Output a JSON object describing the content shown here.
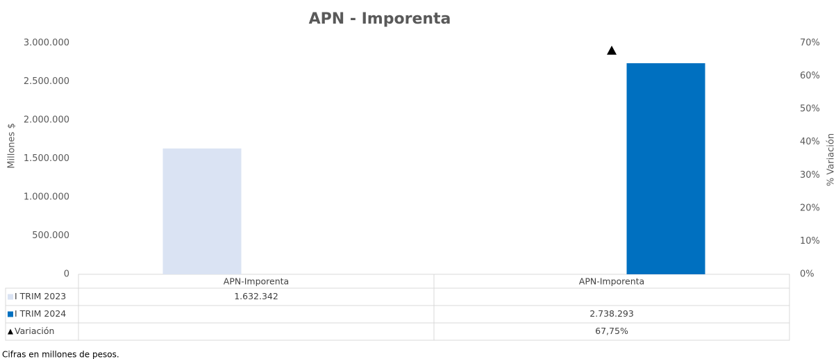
{
  "chart_data": {
    "type": "bar",
    "title": "APN - Imporenta",
    "y_label": "Millones $",
    "y2_label": "% Variación",
    "categories": [
      "APN-Imporenta",
      "APN-Imporenta"
    ],
    "series": [
      {
        "name": "I TRIM 2023",
        "color": "#dae3f3",
        "values": [
          1632342,
          null
        ],
        "value_labels": [
          "1.632.342",
          null
        ]
      },
      {
        "name": "I TRIM 2024",
        "color": "#0070c0",
        "values": [
          null,
          2738293
        ],
        "value_labels": [
          null,
          "2.738.293"
        ]
      },
      {
        "name": "Variación",
        "color": "#000000",
        "axis": "y2",
        "marker": "triangle",
        "values": [
          null,
          67.75
        ],
        "value_labels": [
          null,
          "67,75%"
        ]
      }
    ],
    "ylim": [
      0,
      3000000
    ],
    "yticks": [
      0,
      {
        "value": 500000,
        "label": "500.000"
      },
      {
        "value": 1000000,
        "label": "1.000.000"
      },
      {
        "value": 1500000,
        "label": "1.500.000"
      },
      {
        "value": 2000000,
        "label": "2.000.000"
      },
      {
        "value": 2500000,
        "label": "2.500.000"
      },
      {
        "value": 3000000,
        "label": "3.000.000"
      }
    ],
    "y2lim": [
      0,
      70
    ],
    "y2ticks": [
      {
        "value": 0,
        "label": "0%"
      },
      {
        "value": 10,
        "label": "10%"
      },
      {
        "value": 20,
        "label": "20%"
      },
      {
        "value": 30,
        "label": "30%"
      },
      {
        "value": 40,
        "label": "40%"
      },
      {
        "value": 50,
        "label": "50%"
      },
      {
        "value": 60,
        "label": "60%"
      },
      {
        "value": 70,
        "label": "70%"
      }
    ],
    "grid": false,
    "footnote": "Cifras en millones de pesos."
  }
}
